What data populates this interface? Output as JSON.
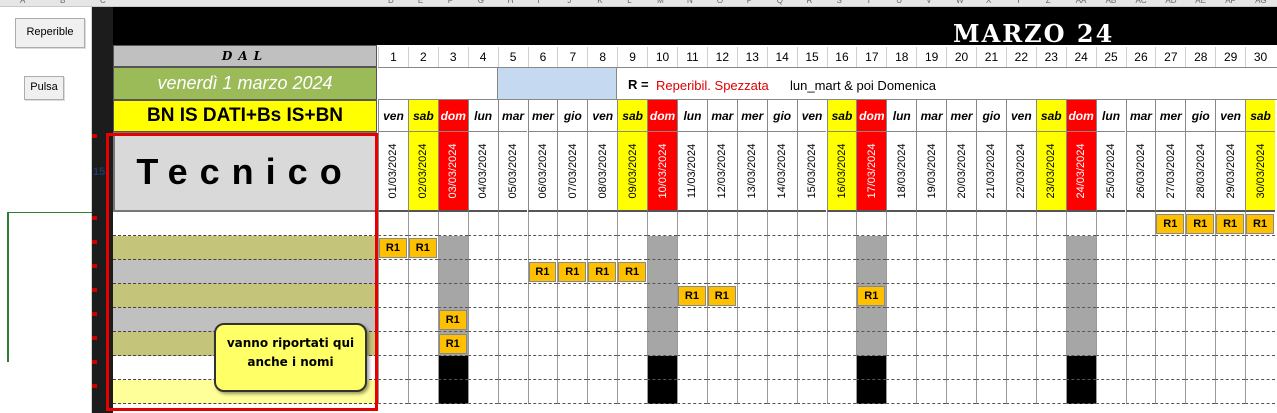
{
  "sheet": {
    "column_letters": [
      "A",
      "B",
      "C",
      "D",
      "E",
      "F",
      "G",
      "H",
      "I",
      "J",
      "K",
      "L",
      "M",
      "N",
      "O",
      "P",
      "Q",
      "R",
      "S",
      "T",
      "U",
      "V",
      "W",
      "X",
      "Y",
      "Z",
      "AA",
      "AB",
      "AC",
      "AD",
      "AE",
      "AF",
      "AG",
      "AH"
    ],
    "row_number": "15"
  },
  "buttons": {
    "reperible": "Reperible",
    "pulsa": "Pulsa"
  },
  "header": {
    "month_title": "MARZO  24",
    "dal_label": "DAL",
    "start_date": "venerdì 1 marzo 2024",
    "team": "BN IS DATI+Bs IS+BN",
    "tecnico": "Tecnico"
  },
  "legend": {
    "r_label": "R =",
    "red_text": "Reperibil. Spezzata",
    "black_text": "lun_mart  &  poi Domenica"
  },
  "note": {
    "line1": "vanno riportati qui",
    "line2": "anche i nomi"
  },
  "colors": {
    "sunday": "#ff0000",
    "saturday": "#ffff00",
    "r1": "#ffc000",
    "sunday_shade": "#a6a6a6",
    "green_header": "#9bbb59",
    "olive_row": "#c4c47a",
    "gray_row": "#c0c0c0",
    "yellow_light": "#ffff99"
  },
  "days": [
    {
      "n": "1",
      "wd": "ven",
      "date": "01/03/2024",
      "type": "wk"
    },
    {
      "n": "2",
      "wd": "sab",
      "date": "02/03/2024",
      "type": "sat"
    },
    {
      "n": "3",
      "wd": "dom",
      "date": "03/03/2024",
      "type": "sun"
    },
    {
      "n": "4",
      "wd": "lun",
      "date": "04/03/2024",
      "type": "wk"
    },
    {
      "n": "5",
      "wd": "mar",
      "date": "05/03/2024",
      "type": "wk"
    },
    {
      "n": "6",
      "wd": "mer",
      "date": "06/03/2024",
      "type": "wk"
    },
    {
      "n": "7",
      "wd": "gio",
      "date": "07/03/2024",
      "type": "wk"
    },
    {
      "n": "8",
      "wd": "ven",
      "date": "08/03/2024",
      "type": "wk"
    },
    {
      "n": "9",
      "wd": "sab",
      "date": "09/03/2024",
      "type": "sat"
    },
    {
      "n": "10",
      "wd": "dom",
      "date": "10/03/2024",
      "type": "sun"
    },
    {
      "n": "11",
      "wd": "lun",
      "date": "11/03/2024",
      "type": "wk"
    },
    {
      "n": "12",
      "wd": "mar",
      "date": "12/03/2024",
      "type": "wk"
    },
    {
      "n": "13",
      "wd": "mer",
      "date": "13/03/2024",
      "type": "wk"
    },
    {
      "n": "14",
      "wd": "gio",
      "date": "14/03/2024",
      "type": "wk"
    },
    {
      "n": "15",
      "wd": "ven",
      "date": "15/03/2024",
      "type": "wk"
    },
    {
      "n": "16",
      "wd": "sab",
      "date": "16/03/2024",
      "type": "sat"
    },
    {
      "n": "17",
      "wd": "dom",
      "date": "17/03/2024",
      "type": "sun"
    },
    {
      "n": "18",
      "wd": "lun",
      "date": "18/03/2024",
      "type": "wk"
    },
    {
      "n": "19",
      "wd": "mar",
      "date": "19/03/2024",
      "type": "wk"
    },
    {
      "n": "20",
      "wd": "mer",
      "date": "20/03/2024",
      "type": "wk"
    },
    {
      "n": "21",
      "wd": "gio",
      "date": "21/03/2024",
      "type": "wk"
    },
    {
      "n": "22",
      "wd": "ven",
      "date": "22/03/2024",
      "type": "wk"
    },
    {
      "n": "23",
      "wd": "sab",
      "date": "23/03/2024",
      "type": "sat"
    },
    {
      "n": "24",
      "wd": "dom",
      "date": "24/03/2024",
      "type": "sun"
    },
    {
      "n": "25",
      "wd": "lun",
      "date": "25/03/2024",
      "type": "wk"
    },
    {
      "n": "26",
      "wd": "mar",
      "date": "26/03/2024",
      "type": "wk"
    },
    {
      "n": "27",
      "wd": "mer",
      "date": "27/03/2024",
      "type": "wk"
    },
    {
      "n": "28",
      "wd": "gio",
      "date": "28/03/2024",
      "type": "wk"
    },
    {
      "n": "29",
      "wd": "ven",
      "date": "29/03/2024",
      "type": "wk"
    },
    {
      "n": "30",
      "wd": "sab",
      "date": "30/03/2024",
      "type": "sat"
    }
  ],
  "rows": [
    {
      "fill": "white",
      "bottom_fill": "gray"
    },
    {
      "fill": "olive",
      "bottom_fill": "gray"
    },
    {
      "fill": "gray",
      "bottom_fill": "gray"
    },
    {
      "fill": "olive",
      "bottom_fill": "gray"
    },
    {
      "fill": "gray",
      "bottom_fill": "gray"
    },
    {
      "fill": "olive",
      "bottom_fill": "gray"
    },
    {
      "fill": "white",
      "bottom_fill": "black"
    },
    {
      "fill": "yellow",
      "bottom_fill": "black"
    }
  ],
  "assignments": [
    {
      "row": 0,
      "days": [
        27,
        28,
        29,
        30
      ],
      "label": "R1"
    },
    {
      "row": 1,
      "days": [
        1,
        2
      ],
      "label": "R1"
    },
    {
      "row": 2,
      "days": [
        6,
        7,
        8,
        9
      ],
      "label": "R1"
    },
    {
      "row": 3,
      "days": [
        11,
        12,
        17
      ],
      "label": "R1"
    },
    {
      "row": 4,
      "days": [
        3
      ],
      "label": "R1"
    },
    {
      "row": 5,
      "days": [
        3
      ],
      "label": "R1"
    }
  ]
}
